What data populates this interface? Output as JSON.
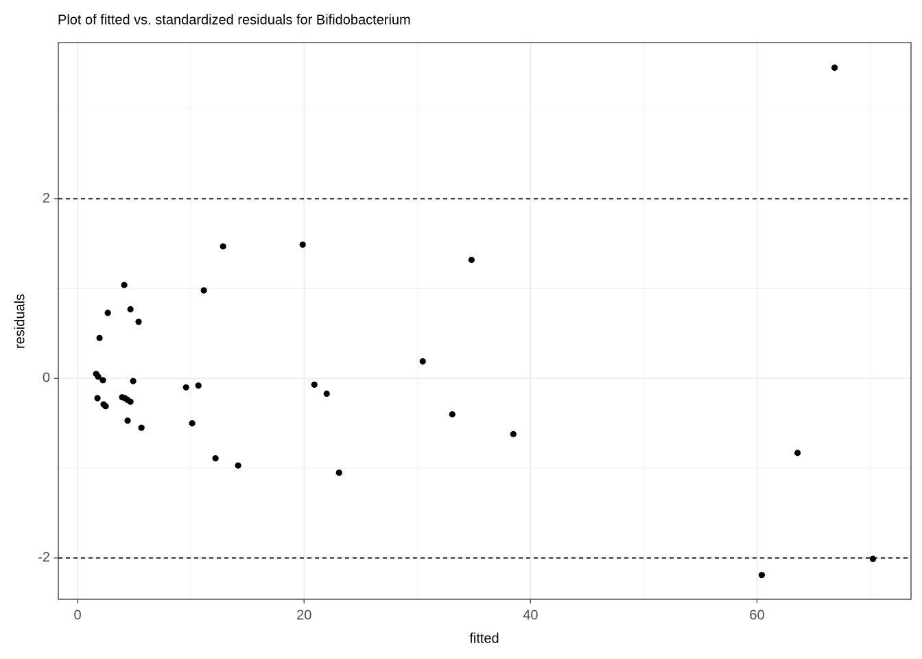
{
  "chart_data": {
    "type": "scatter",
    "title": "Plot of fitted vs. standardized residuals for Bifidobacterium",
    "x_label": "fitted",
    "y_label": "residuals",
    "x": [
      1.64,
      1.82,
      1.76,
      1.94,
      2.24,
      2.3,
      2.48,
      2.67,
      3.94,
      4.12,
      4.18,
      4.42,
      4.42,
      4.67,
      4.67,
      4.91,
      5.39,
      5.64,
      9.58,
      10.12,
      10.67,
      11.15,
      12.18,
      12.85,
      14.18,
      19.88,
      20.91,
      22.0,
      23.09,
      30.48,
      33.09,
      34.79,
      38.48,
      60.42,
      63.58,
      66.85,
      70.24
    ],
    "values": [
      0.05,
      0.02,
      -0.22,
      0.45,
      -0.02,
      -0.29,
      -0.31,
      0.73,
      -0.21,
      1.04,
      -0.22,
      -0.24,
      -0.47,
      -0.26,
      0.77,
      -0.03,
      0.63,
      -0.55,
      -0.1,
      -0.5,
      -0.08,
      0.98,
      -0.89,
      1.47,
      -0.97,
      1.49,
      -0.07,
      -0.17,
      -1.05,
      0.19,
      -0.4,
      1.32,
      -0.62,
      -2.19,
      -0.83,
      3.46,
      -2.01
    ],
    "color": "#000000",
    "xlim": [
      -1.7,
      73.6
    ],
    "ylim": [
      -2.46,
      3.74
    ],
    "xticks": [
      0,
      20,
      40,
      60
    ],
    "yticks": [
      -2,
      0,
      2
    ],
    "xminor": [
      10,
      30,
      50,
      70
    ],
    "yminor": [
      -1,
      1,
      3
    ],
    "hlines": [
      -2,
      2
    ],
    "grid": true
  }
}
